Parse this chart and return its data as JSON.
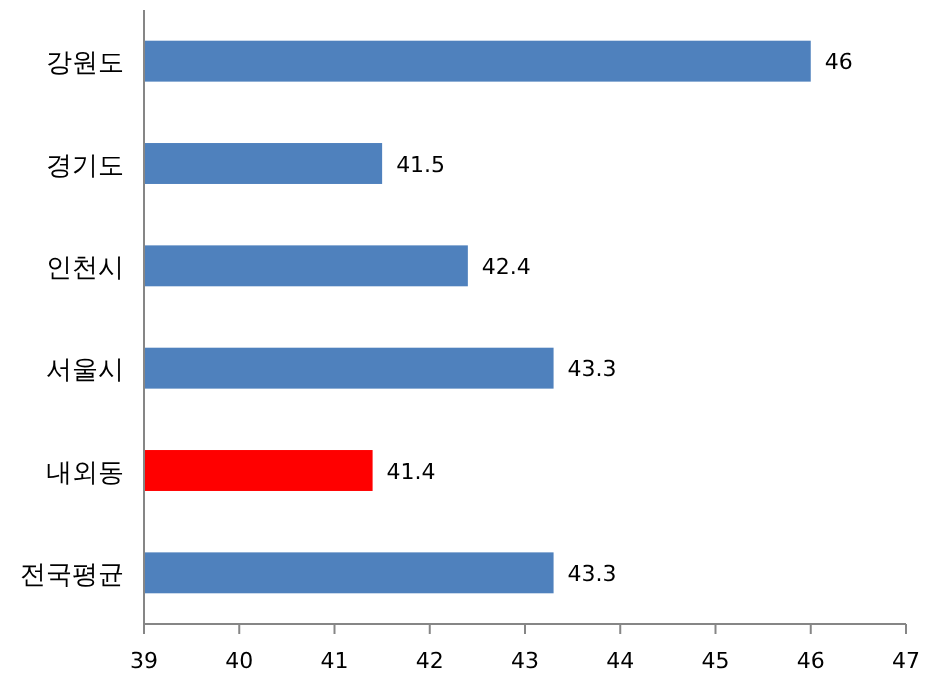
{
  "chart_data": {
    "type": "bar",
    "orientation": "horizontal",
    "categories": [
      "강원도",
      "경기도",
      "인천시",
      "서울시",
      "내외동",
      "전국평균"
    ],
    "values": [
      46,
      41.5,
      42.4,
      43.3,
      41.4,
      43.3
    ],
    "colors": [
      "#4f81bd",
      "#4f81bd",
      "#4f81bd",
      "#4f81bd",
      "#ff0000",
      "#4f81bd"
    ],
    "xlim": [
      39,
      47
    ],
    "xticks": [
      39,
      40,
      41,
      42,
      43,
      44,
      45,
      46,
      47
    ],
    "data_labels": true
  }
}
